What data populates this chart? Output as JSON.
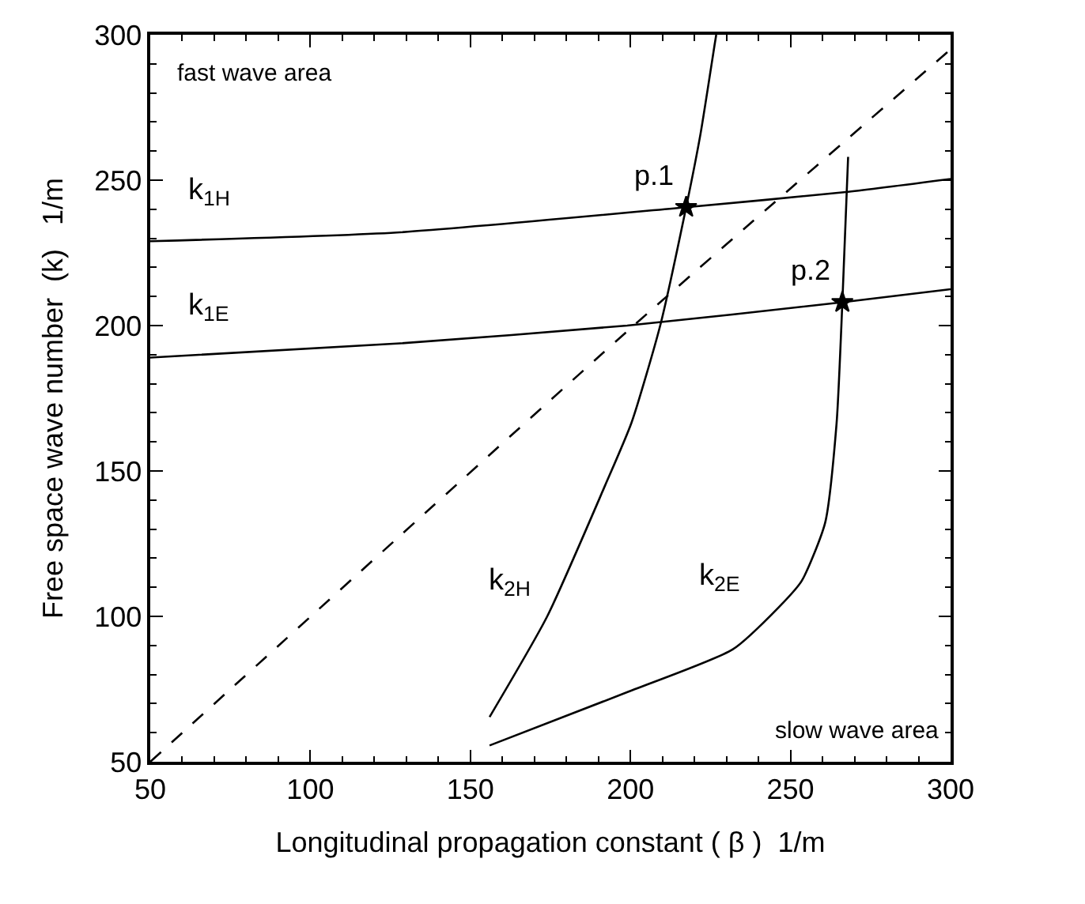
{
  "chart_data": {
    "type": "line",
    "xlabel": "Longitudinal propagation constant ( β )  1/m",
    "ylabel": "Free space wave number  (k)   1/m",
    "xlim": [
      50,
      300
    ],
    "ylim": [
      50,
      300
    ],
    "xticks": [
      50,
      100,
      150,
      200,
      250,
      300
    ],
    "yticks": [
      50,
      100,
      150,
      200,
      250,
      300
    ],
    "marker": "none",
    "series": [
      {
        "name": "k$_{1H}$",
        "color": "#000000",
        "line_style": "solid",
        "x": [
          50,
          127,
          217.4,
          268,
          300
        ],
        "values": [
          229,
          232,
          240.7,
          246,
          250.4
        ]
      },
      {
        "name": "k$_{1E}$",
        "color": "#000000",
        "line_style": "solid",
        "x": [
          50,
          127,
          199,
          266.2,
          300
        ],
        "values": [
          189,
          193.8,
          200,
          208,
          212.5
        ]
      },
      {
        "name": "k$_{2H}$",
        "color": "#000000",
        "line_style": "solid",
        "x": [
          156,
          174,
          192,
          200.3,
          209.3,
          217.4,
          221.9,
          226.4,
          226.8
        ],
        "values": [
          65.4,
          100,
          144.8,
          166.5,
          200,
          240.7,
          266,
          297.3,
          300
        ]
      },
      {
        "name": "k$_{2E}$",
        "color": "#000000",
        "line_style": "solid",
        "x": [
          156,
          199.4,
          231.9,
          246.3,
          253.5,
          260.8,
          264.4,
          266.2,
          268
        ],
        "values": [
          55.6,
          74.1,
          88.6,
          103.1,
          112.2,
          132.1,
          166.5,
          208,
          258
        ]
      },
      {
        "color": "#000000",
        "line_style": "dashed",
        "x": [
          50,
          200,
          299
        ],
        "values": [
          50,
          199,
          294
        ]
      },
      {
        "type": "scatter",
        "marker": "star",
        "color": "#000000",
        "x": [
          217.4,
          266.2
        ],
        "values": [
          240.7,
          208
        ]
      }
    ],
    "annotations": [
      {
        "text": "p.1",
        "x": 217.4,
        "y": 240.7
      },
      {
        "text": "p.2",
        "x": 266.2,
        "y": 208
      },
      "fast wave area",
      "slow wave area"
    ]
  }
}
